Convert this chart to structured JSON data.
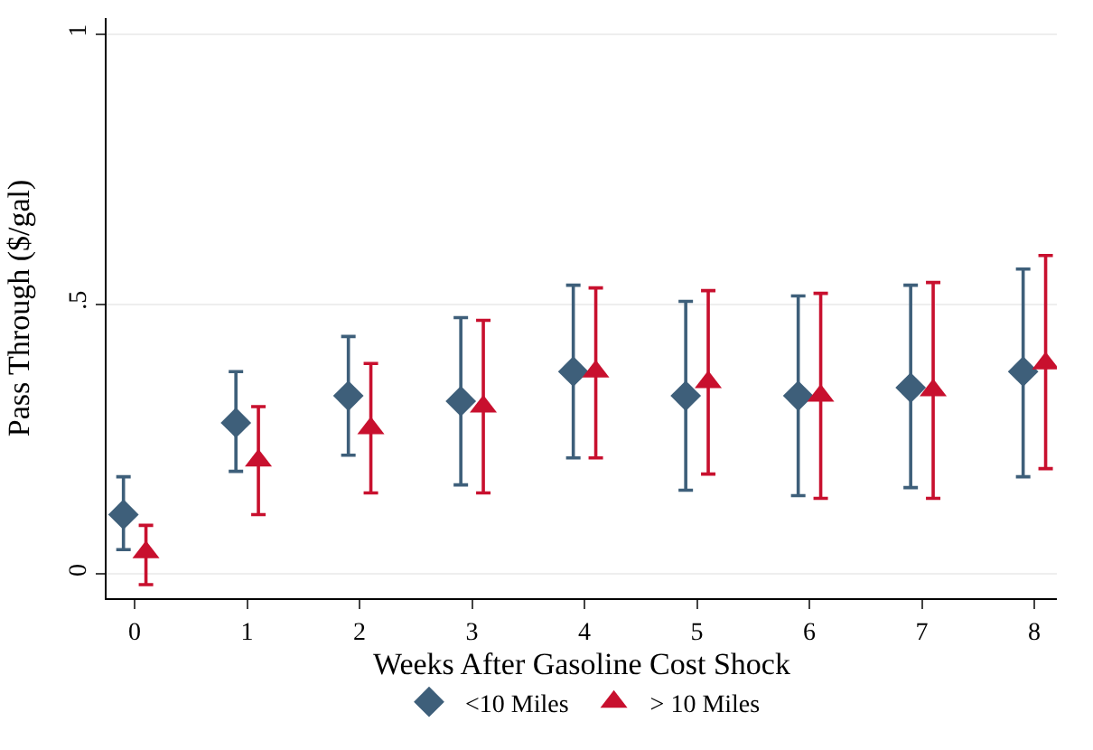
{
  "chart_data": {
    "type": "scatter",
    "xlabel": "Weeks After Gasoline Cost Shock",
    "ylabel": "Pass Through ($/gal)",
    "xlim": [
      -0.25,
      8.2
    ],
    "xticks": [
      0,
      1,
      2,
      3,
      4,
      5,
      6,
      7,
      8
    ],
    "ylim": [
      -0.045,
      1.03
    ],
    "yticks": [
      0,
      {
        "value": 0.5,
        "label": ".5"
      },
      1
    ],
    "grid": "y",
    "legend": "bottom",
    "series": [
      {
        "name": "<10 Miles",
        "color": "#3e5f7a",
        "marker": "diamond",
        "x": [
          -0.1,
          0.9,
          1.9,
          2.9,
          3.9,
          4.9,
          5.9,
          6.9,
          7.9
        ],
        "values": [
          0.11,
          0.28,
          0.33,
          0.32,
          0.375,
          0.33,
          0.33,
          0.345,
          0.375
        ],
        "errors": [
          [
            0.045,
            0.18
          ],
          [
            0.19,
            0.375
          ],
          [
            0.22,
            0.44
          ],
          [
            0.165,
            0.475
          ],
          [
            0.215,
            0.535
          ],
          [
            0.155,
            0.505
          ],
          [
            0.145,
            0.515
          ],
          [
            0.16,
            0.535
          ],
          [
            0.18,
            0.565
          ]
        ]
      },
      {
        "name": "> 10 Miles",
        "color": "#c8102e",
        "marker": "triangle",
        "x": [
          0.1,
          1.1,
          2.1,
          3.1,
          4.1,
          5.1,
          6.1,
          7.1,
          8.1
        ],
        "values": [
          0.04,
          0.21,
          0.27,
          0.31,
          0.375,
          0.355,
          0.33,
          0.34,
          0.39
        ],
        "errors": [
          [
            -0.02,
            0.09
          ],
          [
            0.11,
            0.31
          ],
          [
            0.15,
            0.39
          ],
          [
            0.15,
            0.47
          ],
          [
            0.215,
            0.53
          ],
          [
            0.185,
            0.525
          ],
          [
            0.14,
            0.52
          ],
          [
            0.14,
            0.54
          ],
          [
            0.195,
            0.59
          ]
        ]
      }
    ]
  }
}
